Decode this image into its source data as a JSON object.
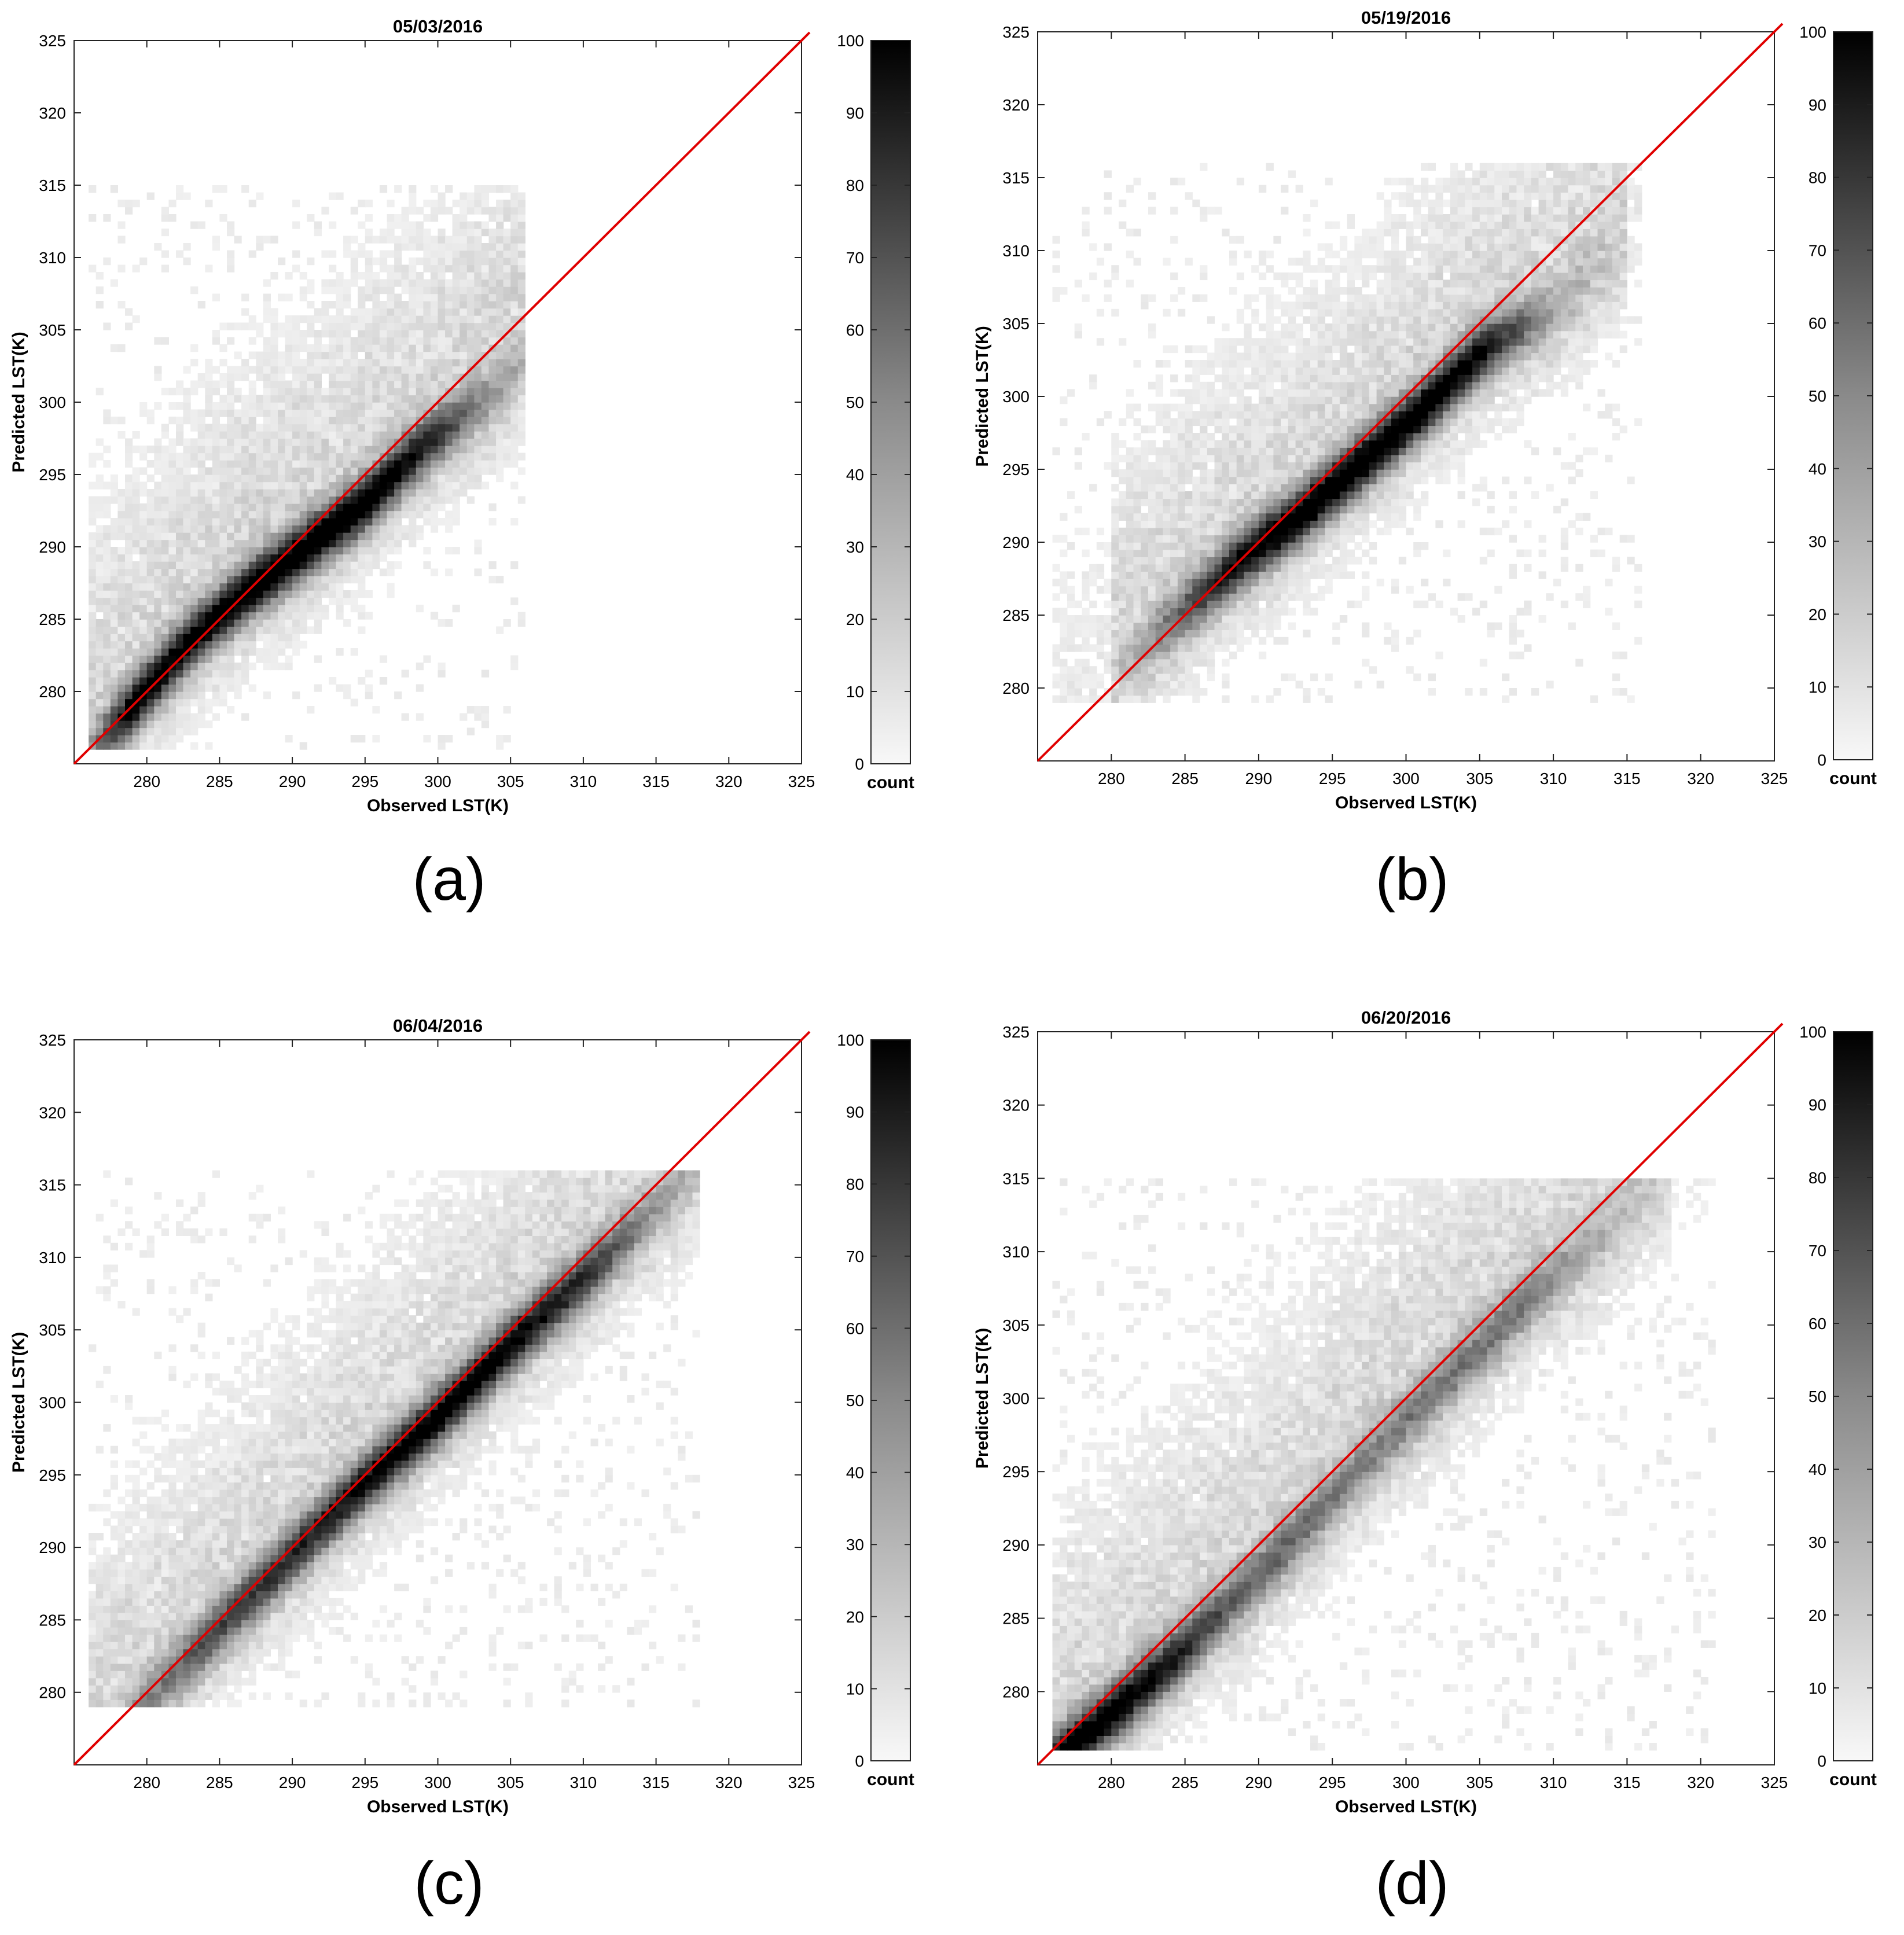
{
  "chart_data": [
    {
      "type": "heatmap",
      "panel_label": "(a)",
      "title": "05/03/2016",
      "xlabel": "Observed LST(K)",
      "ylabel": "Predicted LST(K)",
      "xlim": [
        275,
        325
      ],
      "ylim": [
        275,
        325
      ],
      "xticks": [
        280,
        285,
        290,
        295,
        300,
        305,
        310,
        315,
        320,
        325
      ],
      "yticks": [
        280,
        285,
        290,
        295,
        300,
        305,
        310,
        315,
        320,
        325
      ],
      "colorbar": {
        "label": "count",
        "min": 0,
        "max": 100,
        "ticks": [
          0,
          10,
          20,
          30,
          40,
          50,
          60,
          70,
          80,
          90,
          100
        ],
        "colormap": "white-to-black"
      },
      "reference_line": {
        "label": "1:1",
        "color": "#e00000",
        "from": [
          275,
          275
        ],
        "to": [
          325,
          325
        ]
      },
      "density_ridge": [
        [
          279,
          279,
          95
        ],
        [
          283,
          283.5,
          90
        ],
        [
          287,
          287,
          100
        ],
        [
          291,
          290,
          100
        ],
        [
          295,
          293,
          100
        ],
        [
          299,
          297,
          80
        ],
        [
          303,
          300,
          30
        ]
      ],
      "scatter_extent": {
        "x": [
          276,
          306
        ],
        "y": [
          276,
          315
        ]
      }
    },
    {
      "type": "heatmap",
      "panel_label": "(b)",
      "title": "05/19/2016",
      "xlabel": "Observed LST(K)",
      "ylabel": "Predicted LST(K)",
      "xlim": [
        275,
        325
      ],
      "ylim": [
        275,
        325
      ],
      "xticks": [
        280,
        285,
        290,
        295,
        300,
        305,
        310,
        315,
        320,
        325
      ],
      "yticks": [
        280,
        285,
        290,
        295,
        300,
        305,
        310,
        315,
        320,
        325
      ],
      "colorbar": {
        "label": "count",
        "min": 0,
        "max": 100,
        "ticks": [
          0,
          10,
          20,
          30,
          40,
          50,
          60,
          70,
          80,
          90,
          100
        ],
        "colormap": "white-to-black"
      },
      "reference_line": {
        "label": "1:1",
        "color": "#e00000",
        "from": [
          275,
          275
        ],
        "to": [
          325,
          325
        ]
      },
      "density_ridge": [
        [
          284,
          284.5,
          40
        ],
        [
          289,
          289,
          90
        ],
        [
          293,
          292,
          100
        ],
        [
          297,
          295.5,
          100
        ],
        [
          301,
          299,
          100
        ],
        [
          305,
          303,
          85
        ],
        [
          310,
          306,
          20
        ]
      ],
      "scatter_extent": {
        "x": [
          276,
          316
        ],
        "y": [
          279,
          316
        ]
      }
    },
    {
      "type": "heatmap",
      "panel_label": "(c)",
      "title": "06/04/2016",
      "xlabel": "Observed LST(K)",
      "ylabel": "Predicted LST(K)",
      "xlim": [
        275,
        325
      ],
      "ylim": [
        275,
        325
      ],
      "xticks": [
        280,
        285,
        290,
        295,
        300,
        305,
        310,
        315,
        320,
        325
      ],
      "yticks": [
        280,
        285,
        290,
        295,
        300,
        305,
        310,
        315,
        320,
        325
      ],
      "colorbar": {
        "label": "count",
        "min": 0,
        "max": 100,
        "ticks": [
          0,
          10,
          20,
          30,
          40,
          50,
          60,
          70,
          80,
          90,
          100
        ],
        "colormap": "white-to-black"
      },
      "reference_line": {
        "label": "1:1",
        "color": "#e00000",
        "from": [
          275,
          275
        ],
        "to": [
          325,
          325
        ]
      },
      "density_ridge": [
        [
          280,
          279.5,
          30
        ],
        [
          285,
          284.5,
          60
        ],
        [
          290,
          289.5,
          70
        ],
        [
          295,
          294.5,
          85
        ],
        [
          300,
          299,
          95
        ],
        [
          305,
          304,
          90
        ],
        [
          310,
          308.5,
          70
        ],
        [
          315,
          313.5,
          25
        ]
      ],
      "scatter_extent": {
        "x": [
          276,
          318
        ],
        "y": [
          279,
          316
        ]
      }
    },
    {
      "type": "heatmap",
      "panel_label": "(d)",
      "title": "06/20/2016",
      "xlabel": "Observed LST(K)",
      "ylabel": "Predicted LST(K)",
      "xlim": [
        275,
        325
      ],
      "ylim": [
        275,
        325
      ],
      "xticks": [
        280,
        285,
        290,
        295,
        300,
        305,
        310,
        315,
        320,
        325
      ],
      "yticks": [
        280,
        285,
        290,
        295,
        300,
        305,
        310,
        315,
        320,
        325
      ],
      "colorbar": {
        "label": "count",
        "min": 0,
        "max": 100,
        "ticks": [
          0,
          10,
          20,
          30,
          40,
          50,
          60,
          70,
          80,
          90,
          100
        ],
        "colormap": "white-to-black"
      },
      "reference_line": {
        "label": "1:1",
        "color": "#e00000",
        "from": [
          275,
          275
        ],
        "to": [
          325,
          325
        ]
      },
      "density_ridge": [
        [
          277,
          276,
          100
        ],
        [
          280,
          278.5,
          95
        ],
        [
          284,
          282,
          80
        ],
        [
          288,
          286,
          50
        ],
        [
          292,
          290,
          45
        ],
        [
          297,
          295.5,
          35
        ],
        [
          303,
          301.5,
          40
        ],
        [
          308,
          306.5,
          40
        ],
        [
          313,
          311,
          15
        ]
      ],
      "scatter_extent": {
        "x": [
          276,
          321
        ],
        "y": [
          276,
          315
        ]
      }
    }
  ]
}
